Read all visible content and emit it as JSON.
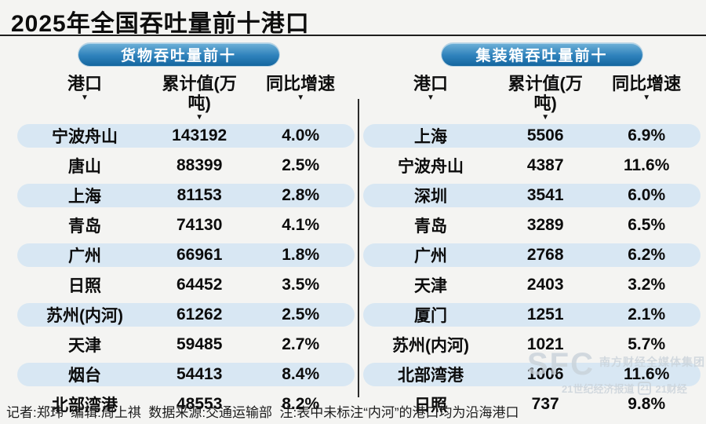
{
  "title": "2025年全国吞吐量前十港口",
  "footer": "记者:郑玮  编辑:周上祺  数据来源:交通运输部  注:表中未标注“内河”的港口均为沿海港口",
  "colors": {
    "pill_blue_top": "#6fb1d8",
    "pill_blue_bottom": "#14669f",
    "row_highlight": "#d8e7f3",
    "background": "#f4f4f2",
    "text": "#0c0c0c"
  },
  "watermark": {
    "sfc": "SFC",
    "line1": "南方财经全媒体集团",
    "line2_left": "21世纪经济报道",
    "badge": "21",
    "line2_right": "21财经"
  },
  "chart_data": [
    {
      "type": "table",
      "title": "货物吞吐量前十",
      "columns": [
        "港口",
        "累计值(万吨)",
        "同比增速"
      ],
      "rows": [
        [
          "宁波舟山",
          "143192",
          "4.0%"
        ],
        [
          "唐山",
          "88399",
          "2.5%"
        ],
        [
          "上海",
          "81153",
          "2.8%"
        ],
        [
          "青岛",
          "74130",
          "4.1%"
        ],
        [
          "广州",
          "66961",
          "1.8%"
        ],
        [
          "日照",
          "64452",
          "3.5%"
        ],
        [
          "苏州(内河)",
          "61262",
          "2.5%"
        ],
        [
          "天津",
          "59485",
          "2.7%"
        ],
        [
          "烟台",
          "54413",
          "8.4%"
        ],
        [
          "北部湾港",
          "48553",
          "8.2%"
        ]
      ]
    },
    {
      "type": "table",
      "title": "集装箱吞吐量前十",
      "columns": [
        "港口",
        "累计值(万吨)",
        "同比增速"
      ],
      "rows": [
        [
          "上海",
          "5506",
          "6.9%"
        ],
        [
          "宁波舟山",
          "4387",
          "11.6%"
        ],
        [
          "深圳",
          "3541",
          "6.0%"
        ],
        [
          "青岛",
          "3289",
          "6.5%"
        ],
        [
          "广州",
          "2768",
          "6.2%"
        ],
        [
          "天津",
          "2403",
          "3.2%"
        ],
        [
          "厦门",
          "1251",
          "2.1%"
        ],
        [
          "苏州(内河)",
          "1021",
          "5.7%"
        ],
        [
          "北部湾港",
          "1006",
          "11.6%"
        ],
        [
          "日照",
          "737",
          "9.8%"
        ]
      ]
    }
  ]
}
